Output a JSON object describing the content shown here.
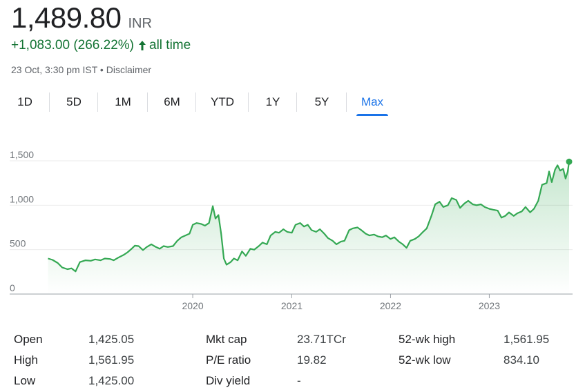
{
  "quote": {
    "price": "1,489.80",
    "currency": "INR",
    "change_text": "+1,083.00 (266.22%)",
    "change_period": "all time",
    "timestamp": "23 Oct, 3:30 pm IST",
    "separator": "•",
    "disclaimer": "Disclaimer",
    "up_color": "#137333"
  },
  "range_tabs": [
    {
      "label": "1D",
      "active": false
    },
    {
      "label": "5D",
      "active": false
    },
    {
      "label": "1M",
      "active": false
    },
    {
      "label": "6M",
      "active": false
    },
    {
      "label": "YTD",
      "active": false
    },
    {
      "label": "1Y",
      "active": false
    },
    {
      "label": "5Y",
      "active": false
    },
    {
      "label": "Max",
      "active": true
    }
  ],
  "chart_data": {
    "type": "area",
    "line_color": "#34a853",
    "ylim": [
      0,
      1500
    ],
    "y_ticks": [
      "0",
      "500",
      "1,000",
      "1,500"
    ],
    "x_ticks": [
      "2020",
      "2021",
      "2022",
      "2023"
    ],
    "grid": true,
    "x_range": [
      "2018-07-01",
      "2023-10-23"
    ],
    "series": [
      {
        "points": [
          [
            "2018-07-15",
            400
          ],
          [
            "2018-08-01",
            385
          ],
          [
            "2018-08-20",
            350
          ],
          [
            "2018-09-05",
            300
          ],
          [
            "2018-09-25",
            280
          ],
          [
            "2018-10-10",
            290
          ],
          [
            "2018-10-25",
            255
          ],
          [
            "2018-11-10",
            360
          ],
          [
            "2018-12-01",
            380
          ],
          [
            "2018-12-20",
            375
          ],
          [
            "2019-01-05",
            390
          ],
          [
            "2019-01-25",
            380
          ],
          [
            "2019-02-10",
            400
          ],
          [
            "2019-03-01",
            395
          ],
          [
            "2019-03-15",
            380
          ],
          [
            "2019-04-01",
            410
          ],
          [
            "2019-04-20",
            440
          ],
          [
            "2019-05-05",
            470
          ],
          [
            "2019-05-20",
            510
          ],
          [
            "2019-06-01",
            545
          ],
          [
            "2019-06-15",
            540
          ],
          [
            "2019-07-01",
            495
          ],
          [
            "2019-07-15",
            530
          ],
          [
            "2019-08-01",
            560
          ],
          [
            "2019-08-15",
            535
          ],
          [
            "2019-09-01",
            510
          ],
          [
            "2019-09-15",
            540
          ],
          [
            "2019-10-01",
            530
          ],
          [
            "2019-10-20",
            540
          ],
          [
            "2019-11-05",
            600
          ],
          [
            "2019-11-20",
            640
          ],
          [
            "2019-12-05",
            660
          ],
          [
            "2019-12-20",
            680
          ],
          [
            "2020-01-01",
            780
          ],
          [
            "2020-01-15",
            800
          ],
          [
            "2020-02-01",
            790
          ],
          [
            "2020-02-15",
            770
          ],
          [
            "2020-03-01",
            800
          ],
          [
            "2020-03-15",
            990
          ],
          [
            "2020-03-25",
            850
          ],
          [
            "2020-04-05",
            890
          ],
          [
            "2020-04-15",
            680
          ],
          [
            "2020-04-25",
            400
          ],
          [
            "2020-05-05",
            330
          ],
          [
            "2020-05-20",
            360
          ],
          [
            "2020-06-01",
            400
          ],
          [
            "2020-06-15",
            380
          ],
          [
            "2020-07-01",
            480
          ],
          [
            "2020-07-15",
            430
          ],
          [
            "2020-08-01",
            510
          ],
          [
            "2020-08-15",
            500
          ],
          [
            "2020-09-01",
            540
          ],
          [
            "2020-09-15",
            580
          ],
          [
            "2020-10-01",
            560
          ],
          [
            "2020-10-15",
            660
          ],
          [
            "2020-11-01",
            700
          ],
          [
            "2020-11-15",
            690
          ],
          [
            "2020-12-01",
            730
          ],
          [
            "2020-12-15",
            700
          ],
          [
            "2021-01-01",
            690
          ],
          [
            "2021-01-15",
            780
          ],
          [
            "2021-02-01",
            800
          ],
          [
            "2021-02-15",
            760
          ],
          [
            "2021-03-01",
            780
          ],
          [
            "2021-03-15",
            720
          ],
          [
            "2021-04-01",
            700
          ],
          [
            "2021-04-15",
            730
          ],
          [
            "2021-05-01",
            680
          ],
          [
            "2021-05-15",
            630
          ],
          [
            "2021-06-01",
            600
          ],
          [
            "2021-06-15",
            560
          ],
          [
            "2021-07-01",
            590
          ],
          [
            "2021-07-15",
            600
          ],
          [
            "2021-08-01",
            720
          ],
          [
            "2021-08-15",
            740
          ],
          [
            "2021-09-01",
            750
          ],
          [
            "2021-09-15",
            720
          ],
          [
            "2021-10-01",
            680
          ],
          [
            "2021-10-15",
            660
          ],
          [
            "2021-11-01",
            670
          ],
          [
            "2021-11-15",
            650
          ],
          [
            "2021-12-01",
            640
          ],
          [
            "2021-12-15",
            660
          ],
          [
            "2022-01-01",
            620
          ],
          [
            "2022-01-15",
            640
          ],
          [
            "2022-02-01",
            590
          ],
          [
            "2022-02-15",
            560
          ],
          [
            "2022-03-01",
            520
          ],
          [
            "2022-03-15",
            600
          ],
          [
            "2022-04-01",
            620
          ],
          [
            "2022-04-15",
            650
          ],
          [
            "2022-05-01",
            700
          ],
          [
            "2022-05-15",
            740
          ],
          [
            "2022-06-01",
            880
          ],
          [
            "2022-06-15",
            1010
          ],
          [
            "2022-07-01",
            1040
          ],
          [
            "2022-07-15",
            980
          ],
          [
            "2022-08-01",
            1000
          ],
          [
            "2022-08-15",
            1080
          ],
          [
            "2022-09-01",
            1060
          ],
          [
            "2022-09-15",
            970
          ],
          [
            "2022-10-01",
            1020
          ],
          [
            "2022-10-15",
            1050
          ],
          [
            "2022-11-01",
            1010
          ],
          [
            "2022-11-15",
            1000
          ],
          [
            "2022-12-01",
            1010
          ],
          [
            "2022-12-15",
            980
          ],
          [
            "2023-01-01",
            960
          ],
          [
            "2023-01-15",
            950
          ],
          [
            "2023-02-01",
            940
          ],
          [
            "2023-02-15",
            860
          ],
          [
            "2023-03-01",
            880
          ],
          [
            "2023-03-15",
            920
          ],
          [
            "2023-04-01",
            880
          ],
          [
            "2023-04-15",
            910
          ],
          [
            "2023-05-01",
            930
          ],
          [
            "2023-05-15",
            980
          ],
          [
            "2023-06-01",
            920
          ],
          [
            "2023-06-15",
            960
          ],
          [
            "2023-07-01",
            1050
          ],
          [
            "2023-07-15",
            1230
          ],
          [
            "2023-08-01",
            1250
          ],
          [
            "2023-08-10",
            1380
          ],
          [
            "2023-08-20",
            1260
          ],
          [
            "2023-09-01",
            1400
          ],
          [
            "2023-09-10",
            1450
          ],
          [
            "2023-09-20",
            1390
          ],
          [
            "2023-10-01",
            1410
          ],
          [
            "2023-10-10",
            1300
          ],
          [
            "2023-10-18",
            1380
          ],
          [
            "2023-10-23",
            1489.8
          ]
        ]
      }
    ]
  },
  "stats": {
    "open": {
      "label": "Open",
      "value": "1,425.05"
    },
    "high": {
      "label": "High",
      "value": "1,561.95"
    },
    "low": {
      "label": "Low",
      "value": "1,425.00"
    },
    "mkt_cap": {
      "label": "Mkt cap",
      "value": "23.71TCr"
    },
    "pe_ratio": {
      "label": "P/E ratio",
      "value": "19.82"
    },
    "div_yield": {
      "label": "Div yield",
      "value": "-"
    },
    "wk52_high": {
      "label": "52-wk high",
      "value": "1,561.95"
    },
    "wk52_low": {
      "label": "52-wk low",
      "value": "834.10"
    }
  }
}
